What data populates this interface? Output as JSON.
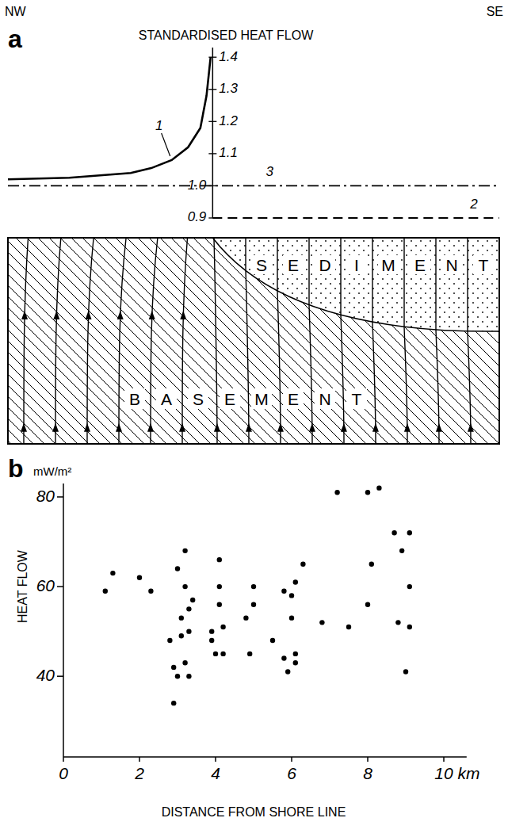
{
  "chart_data": [
    {
      "type": "line",
      "panel": "a",
      "title": "STANDARDISED HEAT FLOW",
      "annotations": {
        "left": "NW",
        "right": "SE"
      },
      "cross_section": {
        "sediment": "SEDIMENT",
        "basement": "BASEMENT"
      },
      "xlim": [
        -10,
        14
      ],
      "ylim": [
        0.9,
        1.43
      ],
      "yticks": [
        0.9,
        {
          "value": 1,
          "label": "1.0"
        },
        1.1,
        1.2,
        1.3,
        1.4
      ],
      "tick_labels": "y",
      "series": [
        {
          "name": "1",
          "color": "#000000",
          "line_style": "solid",
          "x": [
            -10,
            -7,
            -4,
            -3,
            -2,
            -1.2,
            -0.6,
            -0.3,
            -0.1
          ],
          "values": [
            1.02,
            1.025,
            1.04,
            1.055,
            1.08,
            1.12,
            1.18,
            1.28,
            1.4
          ]
        },
        {
          "name": "3",
          "color": "#000000",
          "line_style": "dash-dot",
          "x": [
            -10,
            14
          ],
          "values": [
            1,
            1
          ]
        },
        {
          "name": "2",
          "color": "#000000",
          "line_style": "dashed",
          "x": [
            0,
            14
          ],
          "values": [
            0.9,
            0.9
          ]
        }
      ]
    },
    {
      "type": "scatter",
      "panel": "b",
      "y_label": "HEAT FLOW",
      "y_unit": "mW/m²",
      "x_label": "DISTANCE FROM SHORE LINE",
      "xlim": [
        0,
        10.6
      ],
      "ylim": [
        22,
        83
      ],
      "xticks": [
        0,
        2,
        4,
        6,
        8,
        {
          "value": 10,
          "label": "10 km"
        }
      ],
      "yticks": [
        40,
        60,
        80
      ],
      "color": "#000000",
      "marker": "circle",
      "x": [
        1.1,
        1.3,
        2.0,
        2.3,
        2.8,
        2.9,
        2.9,
        3.0,
        3.0,
        3.1,
        3.1,
        3.2,
        3.2,
        3.2,
        3.3,
        3.3,
        3.3,
        3.4,
        3.9,
        3.9,
        4.0,
        4.1,
        4.1,
        4.1,
        4.2,
        4.2,
        4.8,
        4.9,
        5.0,
        5.0,
        5.5,
        5.8,
        5.8,
        5.9,
        6.0,
        6.0,
        6.1,
        6.1,
        6.1,
        6.3,
        6.8,
        7.2,
        7.5,
        8.0,
        8.0,
        8.1,
        8.3,
        8.7,
        8.8,
        8.9,
        9.0,
        9.1,
        9.1,
        9.1
      ],
      "values": [
        59,
        63,
        62,
        59,
        48,
        42,
        34,
        64,
        40,
        53,
        49,
        68,
        60,
        43,
        40,
        55,
        50,
        57,
        50,
        48,
        45,
        66,
        60,
        56,
        51,
        45,
        53,
        45,
        60,
        56,
        48,
        59,
        44,
        41,
        53,
        58,
        61,
        45,
        43,
        65,
        52,
        81,
        51,
        81,
        56,
        65,
        82,
        72,
        52,
        68,
        41,
        72,
        60,
        51
      ]
    }
  ]
}
